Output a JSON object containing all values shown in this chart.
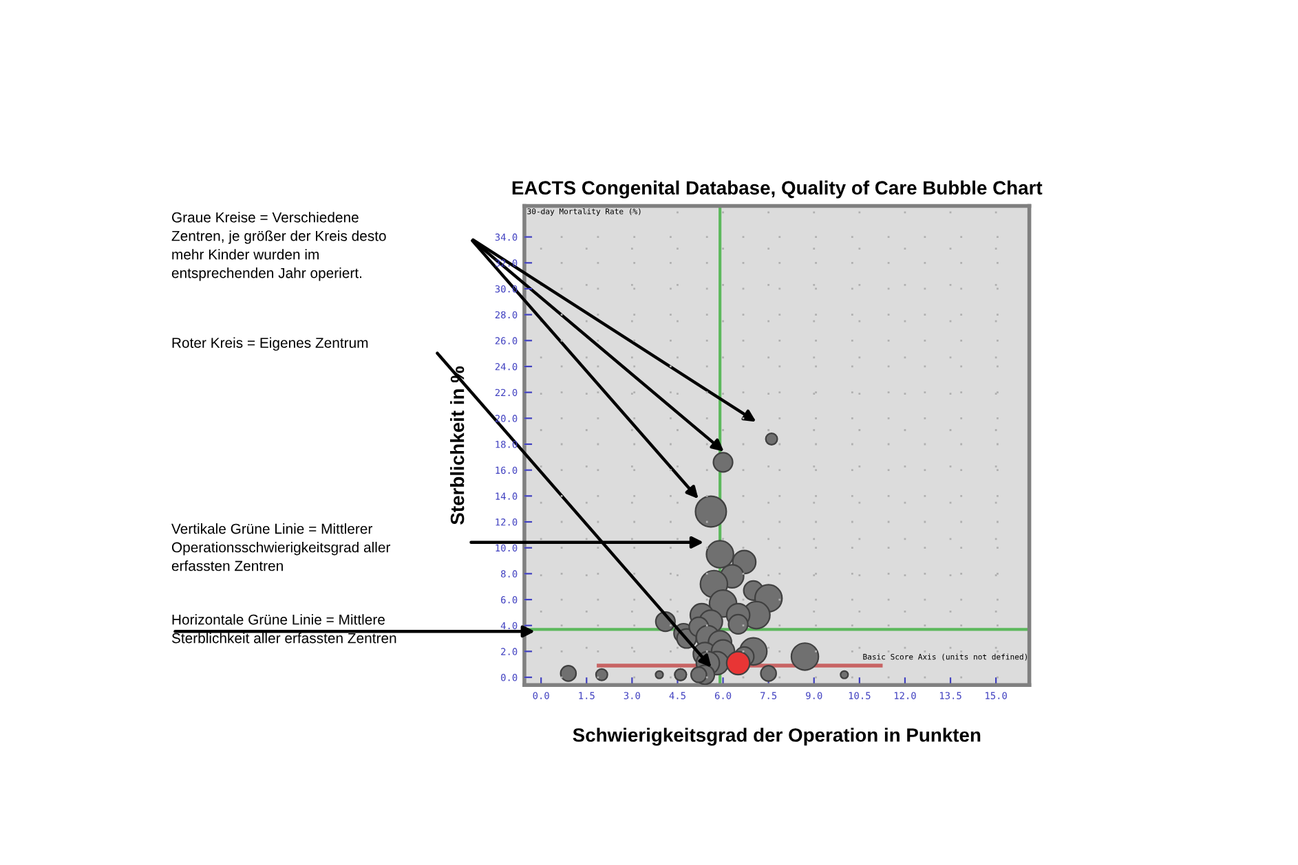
{
  "chart_data": {
    "type": "bubble",
    "title": "EACTS Congenital Database, Quality of Care Bubble Chart",
    "xlabel": "Schwierigkeitsgrad der Operation in Punkten",
    "ylabel": "Sterblichkeit in %",
    "xlim": [
      -0.55,
      16.1
    ],
    "ylim": [
      -0.6,
      36.4
    ],
    "xticks": [
      {
        "value": 0,
        "label": "0.0"
      },
      {
        "value": 1.5,
        "label": "1.5"
      },
      {
        "value": 3,
        "label": "3.0"
      },
      {
        "value": 4.5,
        "label": "4.5"
      },
      {
        "value": 6,
        "label": "6.0"
      },
      {
        "value": 7.5,
        "label": "7.5"
      },
      {
        "value": 9,
        "label": "9.0"
      },
      {
        "value": 10.5,
        "label": "10.5"
      },
      {
        "value": 12,
        "label": "12.0"
      },
      {
        "value": 13.5,
        "label": "13.5"
      },
      {
        "value": 15,
        "label": "15.0"
      }
    ],
    "yticks": [
      {
        "value": 0,
        "label": "0.0"
      },
      {
        "value": 2,
        "label": "2.0"
      },
      {
        "value": 4,
        "label": "4.0"
      },
      {
        "value": 6,
        "label": "6.0"
      },
      {
        "value": 8,
        "label": "8.0"
      },
      {
        "value": 10,
        "label": "10.0"
      },
      {
        "value": 12,
        "label": "12.0"
      },
      {
        "value": 14,
        "label": "14.0"
      },
      {
        "value": 16,
        "label": "16.0"
      },
      {
        "value": 18,
        "label": "18.0"
      },
      {
        "value": 20,
        "label": "20.0"
      },
      {
        "value": 22,
        "label": "22.0"
      },
      {
        "value": 24,
        "label": "24.0"
      },
      {
        "value": 26,
        "label": "26.0"
      },
      {
        "value": 28,
        "label": "28.0"
      },
      {
        "value": 30,
        "label": "30.0"
      },
      {
        "value": 32,
        "label": "32.0"
      },
      {
        "value": 34,
        "label": "34.0"
      }
    ],
    "grid": true,
    "legend": false,
    "series": [
      {
        "color": "#707070",
        "x": [
          7.6,
          6.0,
          5.6,
          5.9,
          6.7,
          6.3,
          5.7,
          6.0,
          7.0,
          7.5,
          7.1,
          6.5,
          6.5,
          5.3,
          5.6,
          4.1,
          4.7,
          4.8,
          5.2,
          5.5,
          5.9,
          5.4,
          6.0,
          7.0,
          6.7,
          5.8,
          5.5,
          8.7,
          7.5,
          5.4,
          4.6,
          5.2,
          0.9,
          2.0,
          3.9,
          4.6,
          10.0
        ],
        "values": [
          18.4,
          16.6,
          12.8,
          9.5,
          8.9,
          7.8,
          7.2,
          5.7,
          6.7,
          6.1,
          4.8,
          4.8,
          4.1,
          4.8,
          4.3,
          4.3,
          3.4,
          3.0,
          3.9,
          3.1,
          2.7,
          1.8,
          2.0,
          2.0,
          1.6,
          1.1,
          1.1,
          1.6,
          0.3,
          0.2,
          0.2,
          0.2,
          0.3,
          0.2,
          0.2,
          0.2,
          0.2
        ],
        "sizes": [
          0.14,
          0.39,
          1,
          0.77,
          0.56,
          0.56,
          0.77,
          0.77,
          0.39,
          0.77,
          0.77,
          0.56,
          0.39,
          0.56,
          0.56,
          0.39,
          0.39,
          0.39,
          0.39,
          0.56,
          0.56,
          0.56,
          0.56,
          0.77,
          0.39,
          0.56,
          0.56,
          0.77,
          0.25,
          0.39,
          0.14,
          0.25,
          0.25,
          0.14,
          0.06,
          0.14,
          0.06
        ]
      },
      {
        "color": "#e83535",
        "x": [
          6.5
        ],
        "values": [
          1.1
        ],
        "sizes": [
          0.56
        ]
      },
      {
        "type": "line",
        "color": "#c86464",
        "x": [
          1.9,
          11.2
        ],
        "values": [
          0.9,
          0.9
        ],
        "marker": "none"
      }
    ],
    "ref_lines": [
      {
        "axis": "x",
        "value": 5.9,
        "color": "#5cb85c"
      },
      {
        "axis": "y",
        "value": 3.7,
        "color": "#5cb85c"
      }
    ],
    "annotations": [
      "30-day Mortality Rate (%)",
      "Basic Score Axis (units not defined)",
      "Graue Kreise = Verschiedene Zentren, je größer der Kreis desto mehr Kinder wurden im entsprechenden Jahr operiert.",
      "Roter Kreis = Eigenes Zentrum",
      "Vertikale Grüne Linie = Mittlerer Operationsschwierigkeitsgrad aller erfassten Zentren",
      "Horizontale Grüne Linie = Mittlere Sterblichkeit aller erfassten Zentren"
    ]
  }
}
